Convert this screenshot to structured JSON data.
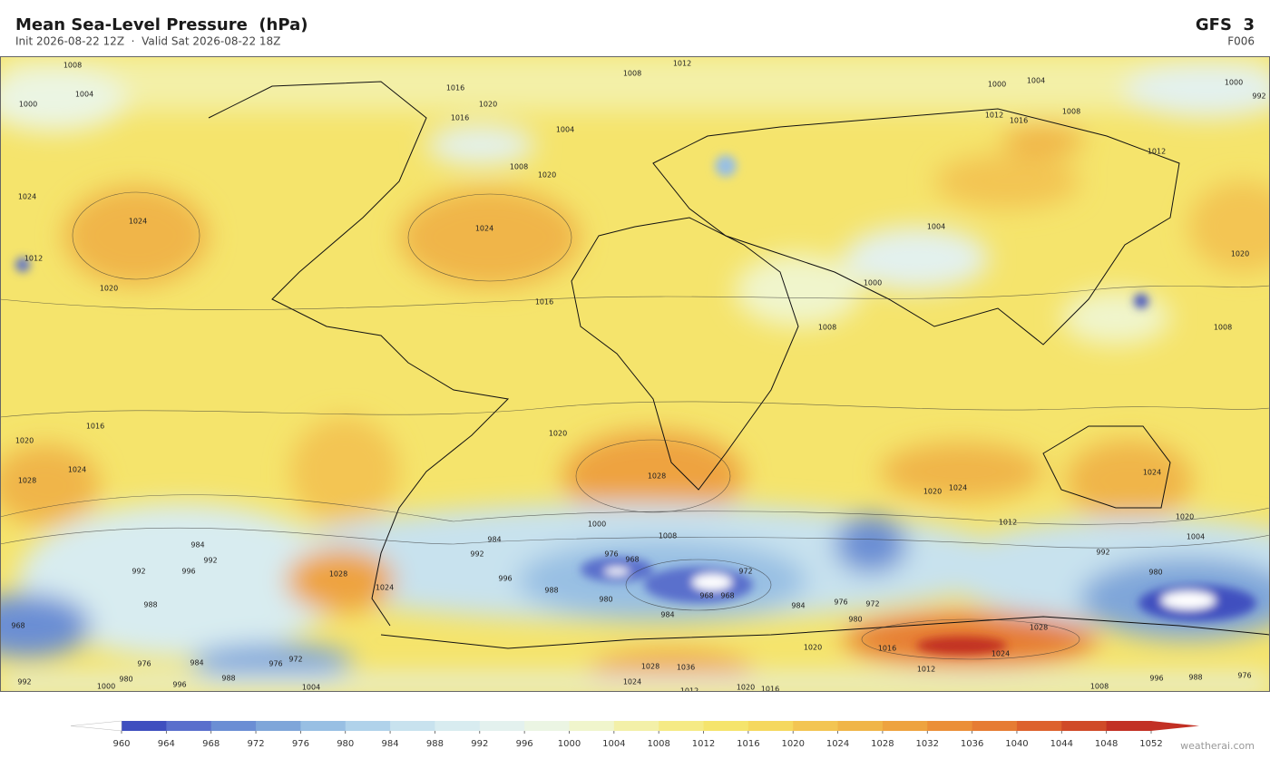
{
  "header": {
    "title": "Mean Sea-Level Pressure  (hPa)",
    "subtitle": "Init 2026-08-22 12Z  ·  Valid Sat 2026-08-22 18Z",
    "model": "GFS  3",
    "forecast": "F006"
  },
  "map": {
    "contour_labels": [
      1008,
      1012,
      1008,
      1004,
      1000,
      1016,
      1020,
      1016,
      1004,
      1008,
      1020,
      1024,
      1024,
      1024,
      1012,
      1020,
      1016,
      1000,
      1004,
      1000,
      992,
      1012,
      1016,
      1008,
      1012,
      1008,
      1020,
      1004,
      1000,
      1008,
      1016,
      1020,
      1024,
      1028,
      1020,
      1028,
      1024,
      1020,
      1024,
      1020,
      1012,
      1004,
      1000,
      1008,
      984,
      992,
      996,
      988,
      980,
      976,
      968,
      972,
      968,
      968,
      984,
      992,
      996,
      992,
      988,
      1028,
      1024,
      984,
      984,
      976,
      972,
      980,
      1028,
      1020,
      1016,
      1024,
      1028,
      1036,
      1024,
      1012,
      1020,
      1016,
      1012,
      1008,
      996,
      988,
      976,
      980,
      992,
      968,
      976,
      980,
      992,
      1000,
      996,
      1004,
      984,
      976,
      972,
      988
    ]
  },
  "colorbar": {
    "ticks": [
      960,
      964,
      968,
      972,
      976,
      980,
      984,
      988,
      992,
      996,
      1000,
      1004,
      1008,
      1012,
      1016,
      1020,
      1024,
      1028,
      1032,
      1036,
      1040,
      1044,
      1048,
      1052
    ],
    "colors": [
      "#3f4fbf",
      "#5a6fcc",
      "#6b8ed4",
      "#7fa6d9",
      "#98bfe3",
      "#b0d2ea",
      "#c8e2ee",
      "#d8ecf0",
      "#e3f1ee",
      "#ebf5e3",
      "#f0f5cc",
      "#f3f0a8",
      "#f5ea85",
      "#f5e46c",
      "#f5d85e",
      "#f3c552",
      "#f0b548",
      "#eea33f",
      "#eb8f38",
      "#e67c33",
      "#dd622d",
      "#d04a28",
      "#c23024"
    ],
    "under_color": "#ffffff",
    "over_color": "#c23024"
  },
  "footer": {
    "watermark": "weatherai.com"
  }
}
